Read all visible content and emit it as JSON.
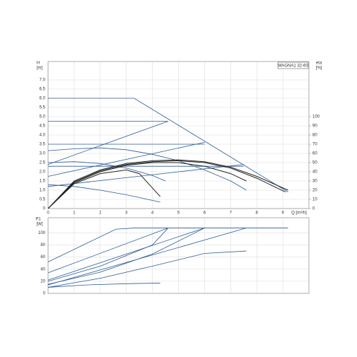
{
  "chart_data": [
    {
      "type": "line",
      "legend_title": "MAGNA1 32-60",
      "y_label": "H",
      "y_unit": "[m]",
      "y2_label": "eta",
      "y2_unit": "[%]",
      "x_label": "Q [m³/h]",
      "xlim": [
        0,
        10
      ],
      "ylim": [
        0,
        8
      ],
      "y2lim": [
        0,
        160
      ],
      "xticks": [
        0,
        1,
        2,
        3,
        4,
        5,
        6,
        7,
        8,
        9
      ],
      "yticks": [
        0,
        0.5,
        {
          "value": 1,
          "label": "1.0"
        },
        1.5,
        {
          "value": 2,
          "label": "2.0"
        },
        2.5,
        {
          "value": 3,
          "label": "3.0"
        },
        3.5,
        {
          "value": 4,
          "label": "4.0"
        },
        4.5,
        {
          "value": 5,
          "label": "5.0"
        },
        5.5,
        {
          "value": 6,
          "label": "6.0"
        },
        6.5,
        {
          "value": 7,
          "label": "7.0"
        }
      ],
      "y2ticks": [
        0,
        10,
        20,
        30,
        40,
        50,
        60,
        70,
        80,
        90,
        100
      ],
      "grid": true,
      "series": [
        {
          "color": "#2b5a96",
          "x": [
            0,
            3.3,
            9.2
          ],
          "values": [
            6.0,
            6.0,
            0.9
          ]
        },
        {
          "color": "#2b5a96",
          "x": [
            0,
            4.6
          ],
          "values": [
            4.75,
            4.75
          ]
        },
        {
          "color": "#2b5a96",
          "x": [
            0,
            6.0
          ],
          "values": [
            3.5,
            3.5
          ]
        },
        {
          "color": "#2b5a96",
          "x": [
            0,
            7.5
          ],
          "values": [
            2.3,
            2.3
          ]
        },
        {
          "color": "#2b5a96",
          "x": [
            0,
            4.6
          ],
          "values": [
            2.4,
            4.75
          ]
        },
        {
          "color": "#2b5a96",
          "x": [
            0,
            6.0
          ],
          "values": [
            1.75,
            3.6
          ]
        },
        {
          "color": "#2b5a96",
          "x": [
            0,
            7.5
          ],
          "values": [
            1.2,
            2.4
          ]
        },
        {
          "color": "#2b5a96",
          "x": [
            0,
            1,
            2,
            3,
            4,
            5,
            6,
            7,
            7.6
          ],
          "values": [
            3.15,
            3.25,
            3.3,
            3.2,
            2.95,
            2.6,
            2.1,
            1.5,
            1.0
          ]
        },
        {
          "color": "#2b5a96",
          "x": [
            0,
            1,
            2,
            3,
            4,
            4.5
          ],
          "values": [
            2.5,
            2.55,
            2.45,
            2.2,
            1.8,
            1.5
          ]
        },
        {
          "color": "#2b5a96",
          "x": [
            0,
            1,
            2,
            3,
            4.3
          ],
          "values": [
            1.3,
            1.2,
            1.0,
            0.75,
            0.35
          ]
        },
        {
          "color": "#222222",
          "axis": "y2",
          "x": [
            0,
            1,
            2,
            3,
            4,
            5,
            6,
            7,
            8,
            9.2
          ],
          "values": [
            0,
            30,
            42,
            49,
            52,
            53,
            51,
            45,
            35,
            20
          ]
        },
        {
          "color": "#222222",
          "axis": "y2",
          "x": [
            0,
            1,
            2,
            3,
            4,
            5,
            6,
            7,
            7.6
          ],
          "values": [
            0,
            28,
            40,
            47,
            50,
            50,
            46,
            38,
            30
          ]
        },
        {
          "color": "#222222",
          "axis": "y2",
          "x": [
            0,
            1,
            2,
            3,
            4,
            5,
            6,
            7,
            8,
            9.1
          ],
          "values": [
            0,
            29,
            41,
            48,
            51,
            52,
            50,
            44,
            33,
            18
          ]
        },
        {
          "color": "#222222",
          "axis": "y2",
          "x": [
            0,
            1,
            2,
            3,
            3.5,
            4.3
          ],
          "values": [
            0,
            27,
            38,
            42,
            38,
            13
          ]
        }
      ]
    },
    {
      "type": "line",
      "y_label": "P1",
      "y_unit": "[W]",
      "xlim": [
        0,
        10
      ],
      "ylim": [
        0,
        125
      ],
      "xticks": [
        0,
        1,
        2,
        3,
        4,
        5,
        6,
        7,
        8,
        9
      ],
      "yticks": [
        0,
        20,
        40,
        60,
        80,
        100
      ],
      "grid": true,
      "series": [
        {
          "color": "#2b5a96",
          "x": [
            0,
            2.6,
            3.3,
            9.2
          ],
          "values": [
            52,
            106,
            108,
            108
          ]
        },
        {
          "color": "#2b5a96",
          "x": [
            0,
            4.6
          ],
          "values": [
            34,
            108
          ]
        },
        {
          "color": "#2b5a96",
          "x": [
            0,
            6.0
          ],
          "values": [
            22,
            108
          ]
        },
        {
          "color": "#2b5a96",
          "x": [
            0,
            7.6
          ],
          "values": [
            14,
            108
          ]
        },
        {
          "color": "#2b5a96",
          "x": [
            0,
            2,
            4,
            4.6
          ],
          "values": [
            20,
            45,
            80,
            108
          ]
        },
        {
          "color": "#2b5a96",
          "x": [
            0,
            2,
            4,
            6
          ],
          "values": [
            15,
            35,
            65,
            108
          ]
        },
        {
          "color": "#2b5a96",
          "x": [
            0,
            2,
            4,
            6,
            7.6
          ],
          "values": [
            10,
            25,
            45,
            66,
            70
          ]
        },
        {
          "color": "#2b5a96",
          "x": [
            0,
            1.5,
            3,
            4.3
          ],
          "values": [
            10,
            14,
            16,
            17
          ]
        }
      ]
    }
  ]
}
